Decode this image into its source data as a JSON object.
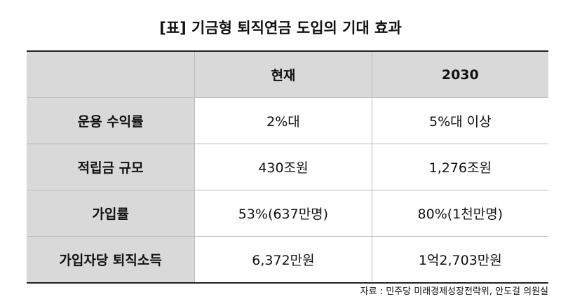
{
  "title": "[표] 기금형 퇴직연금 도입의 기대 효과",
  "table": {
    "header": [
      "현재",
      "2030"
    ],
    "rows": [
      [
        "운용 수익률",
        "2%대",
        "5%대 이상"
      ],
      [
        "적립금 규모",
        "430조원",
        "1,276조원"
      ],
      [
        "가입률",
        "53%(637만명)",
        "80%(1천만명)"
      ],
      [
        "가입자당 퇴직소득",
        "6,372만원",
        "1억2,703만원"
      ]
    ]
  },
  "source": "자료 : 민주당 미래경제성장전략위, 안도걸 의원실"
}
